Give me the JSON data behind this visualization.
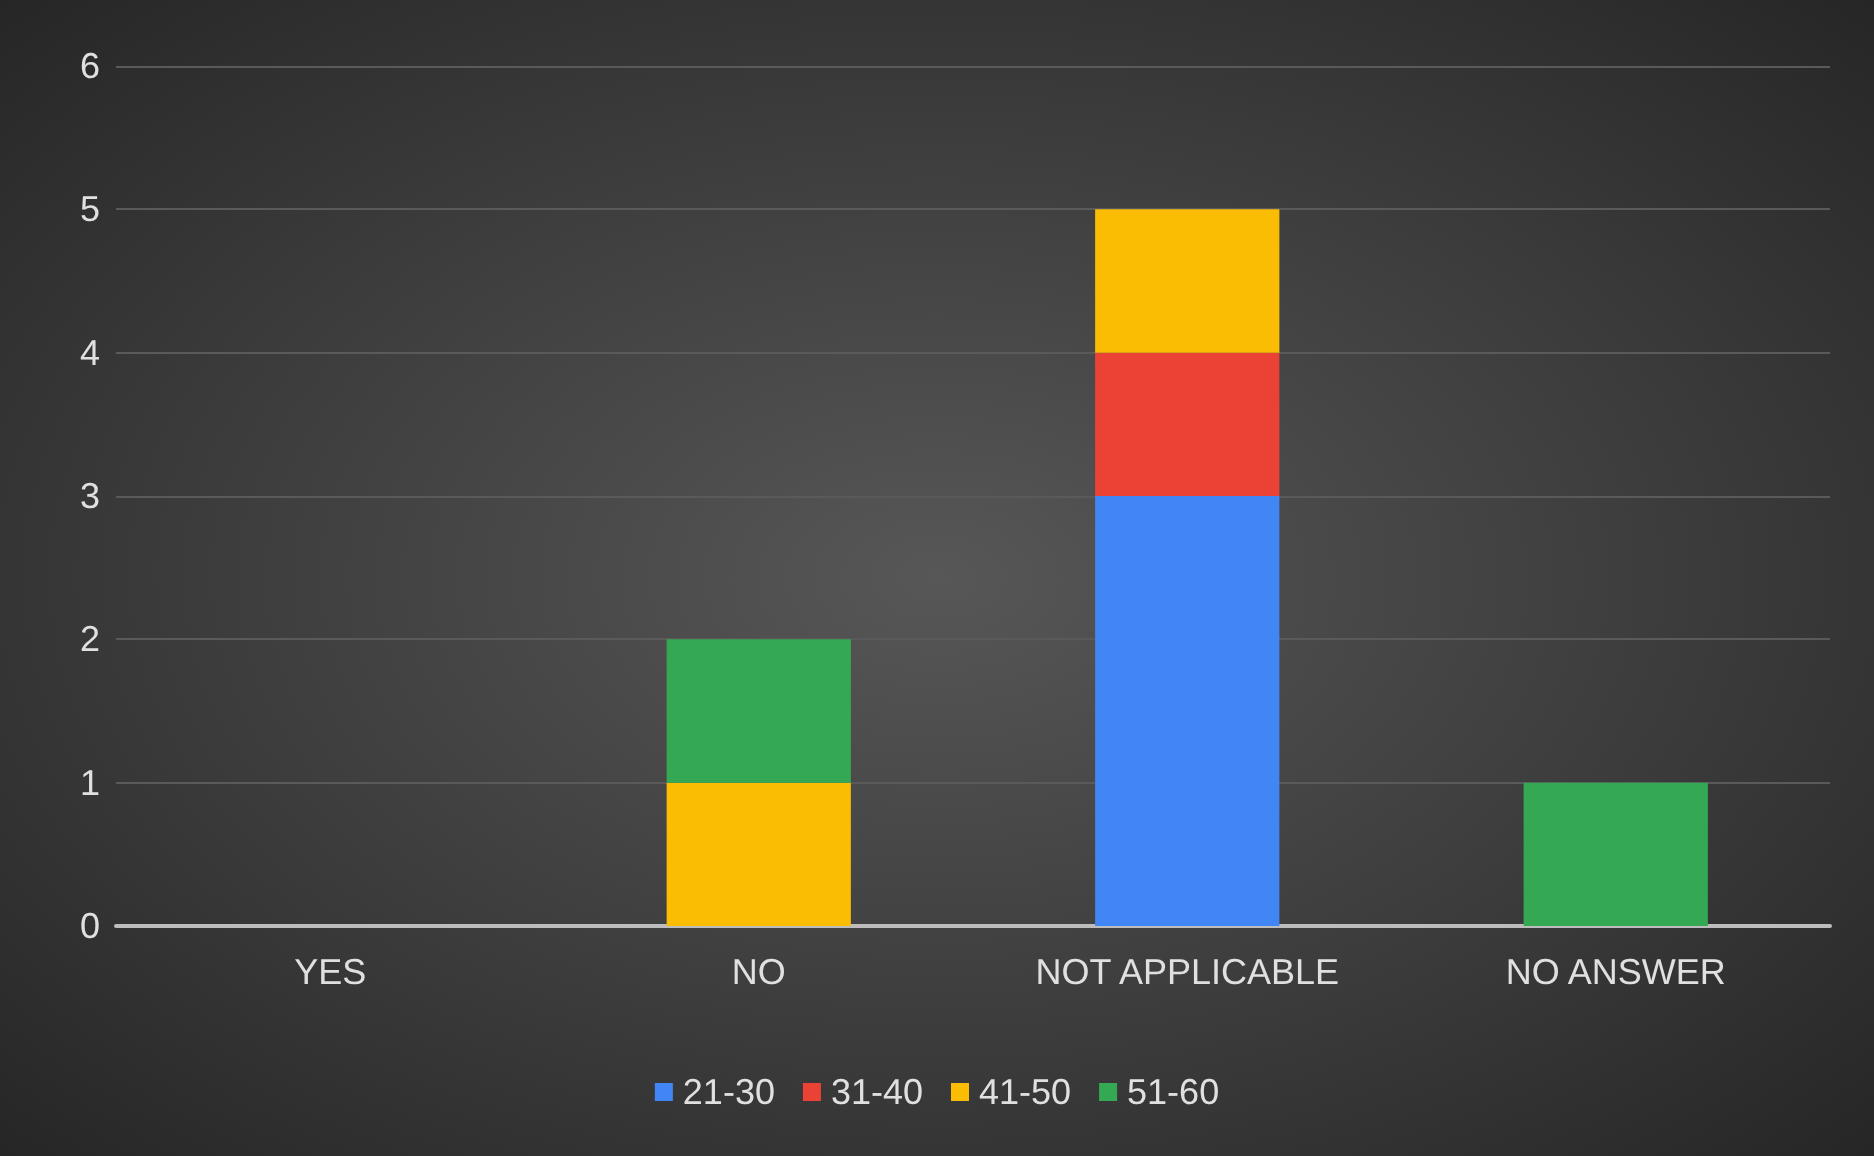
{
  "chart_data": {
    "type": "bar",
    "stacked": true,
    "categories": [
      "YES",
      "NO",
      "NOT APPLICABLE",
      "NO ANSWER"
    ],
    "series": [
      {
        "name": "21-30",
        "color": "#4285f4",
        "values": [
          0,
          0,
          3,
          0
        ]
      },
      {
        "name": "31-40",
        "color": "#ea4335",
        "values": [
          0,
          0,
          1,
          0
        ]
      },
      {
        "name": "41-50",
        "color": "#fbbc04",
        "values": [
          0,
          1,
          1,
          0
        ]
      },
      {
        "name": "51-60",
        "color": "#34a853",
        "values": [
          0,
          1,
          0,
          1
        ]
      }
    ],
    "ylim": [
      0,
      6
    ],
    "yticks": [
      0,
      1,
      2,
      3,
      4,
      5,
      6
    ],
    "grid": true,
    "legend": "bottom"
  }
}
